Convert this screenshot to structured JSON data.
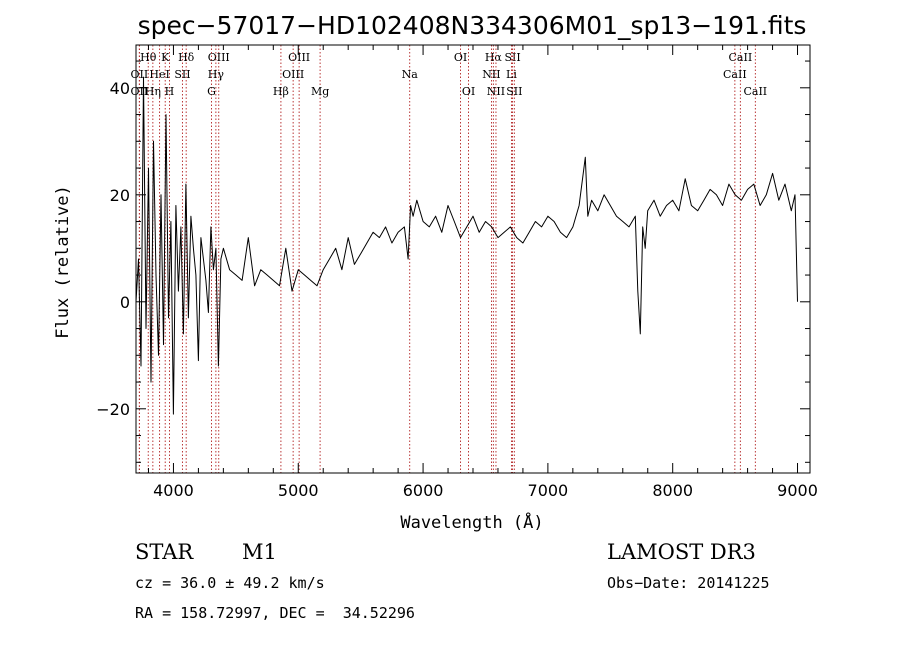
{
  "chart_data": {
    "type": "line",
    "title": "spec−57017−HD102408N334306M01_sp13−191.fits",
    "xlabel": "Wavelength (Å)",
    "ylabel": "Flux (relative)",
    "xlim": [
      3700,
      9100
    ],
    "ylim": [
      -32,
      48
    ],
    "x_ticks": [
      4000,
      5000,
      6000,
      7000,
      8000,
      9000
    ],
    "y_ticks": [
      -20,
      0,
      20,
      40
    ],
    "x_tick_labels": [
      "4000",
      "5000",
      "6000",
      "7000",
      "8000",
      "9000"
    ],
    "y_tick_labels": [
      "−20",
      "0",
      "20",
      "40"
    ],
    "grid": false,
    "legend": "none",
    "line_color": "#000000",
    "marker_color": "#b22222",
    "spectral_lines": [
      {
        "label": "Hθ",
        "x": 3798,
        "row": 0
      },
      {
        "label": "K",
        "x": 3934,
        "row": 0
      },
      {
        "label": "Hδ",
        "x": 4102,
        "row": 0
      },
      {
        "label": "OIII",
        "x": 4363,
        "row": 0
      },
      {
        "label": "OIII",
        "x": 5007,
        "row": 0
      },
      {
        "label": "OI",
        "x": 6300,
        "row": 0
      },
      {
        "label": "Hα",
        "x": 6563,
        "row": 0
      },
      {
        "label": "SII",
        "x": 6717,
        "row": 0
      },
      {
        "label": "CaII",
        "x": 8542,
        "row": 0
      },
      {
        "label": "OII",
        "x": 3727,
        "row": 1
      },
      {
        "label": "HeI",
        "x": 3889,
        "row": 1
      },
      {
        "label": "SII",
        "x": 4072,
        "row": 1
      },
      {
        "label": "Hγ",
        "x": 4340,
        "row": 1
      },
      {
        "label": "OIII",
        "x": 4959,
        "row": 1
      },
      {
        "label": "Na",
        "x": 5893,
        "row": 1
      },
      {
        "label": "NII",
        "x": 6548,
        "row": 1
      },
      {
        "label": "Li",
        "x": 6708,
        "row": 1
      },
      {
        "label": "CaII",
        "x": 8498,
        "row": 1
      },
      {
        "label": "OII",
        "x": 3727,
        "row": 2
      },
      {
        "label": "Hη",
        "x": 3835,
        "row": 2
      },
      {
        "label": "H",
        "x": 3968,
        "row": 2
      },
      {
        "label": "G",
        "x": 4305,
        "row": 2
      },
      {
        "label": "Hβ",
        "x": 4861,
        "row": 2
      },
      {
        "label": "Mg",
        "x": 5175,
        "row": 2
      },
      {
        "label": "OI",
        "x": 6364,
        "row": 2
      },
      {
        "label": "NII",
        "x": 6584,
        "row": 2
      },
      {
        "label": "SII",
        "x": 6731,
        "row": 2
      },
      {
        "label": "CaII",
        "x": 8662,
        "row": 2
      }
    ],
    "series": [
      {
        "x": [
          3700,
          3720,
          3740,
          3760,
          3780,
          3800,
          3820,
          3840,
          3860,
          3880,
          3900,
          3920,
          3940,
          3960,
          3980,
          4000,
          4020,
          4040,
          4060,
          4080,
          4100,
          4120,
          4140,
          4160,
          4180,
          4200,
          4220,
          4240,
          4260,
          4280,
          4300,
          4320,
          4340,
          4360,
          4380,
          4400,
          4450,
          4500,
          4550,
          4600,
          4650,
          4700,
          4750,
          4800,
          4850,
          4900,
          4950,
          5000,
          5050,
          5100,
          5150,
          5200,
          5250,
          5300,
          5350,
          5400,
          5450,
          5500,
          5550,
          5600,
          5650,
          5700,
          5750,
          5800,
          5850,
          5880,
          5900,
          5920,
          5950,
          6000,
          6050,
          6100,
          6150,
          6200,
          6250,
          6300,
          6350,
          6400,
          6450,
          6500,
          6550,
          6600,
          6650,
          6700,
          6750,
          6800,
          6850,
          6900,
          6950,
          7000,
          7050,
          7100,
          7150,
          7200,
          7250,
          7300,
          7320,
          7350,
          7400,
          7450,
          7500,
          7550,
          7600,
          7650,
          7700,
          7720,
          7740,
          7760,
          7780,
          7800,
          7850,
          7900,
          7950,
          8000,
          8050,
          8100,
          8150,
          8200,
          8250,
          8300,
          8350,
          8400,
          8450,
          8500,
          8550,
          8600,
          8650,
          8700,
          8750,
          8800,
          8850,
          8900,
          8950,
          8980,
          9000
        ],
        "y": [
          0,
          8,
          -12,
          42,
          -5,
          25,
          -15,
          30,
          5,
          -10,
          20,
          -8,
          35,
          -3,
          15,
          -21,
          18,
          2,
          14,
          -6,
          22,
          -3,
          16,
          10,
          5,
          -11,
          12,
          8,
          4,
          -2,
          14,
          6,
          10,
          -12,
          8,
          10,
          6,
          5,
          4,
          12,
          3,
          6,
          5,
          4,
          3,
          10,
          2,
          6,
          5,
          4,
          3,
          6,
          8,
          10,
          6,
          12,
          7,
          9,
          11,
          13,
          12,
          14,
          11,
          13,
          14,
          8,
          18,
          16,
          19,
          15,
          14,
          16,
          13,
          18,
          15,
          12,
          14,
          16,
          13,
          15,
          14,
          12,
          13,
          14,
          12,
          11,
          13,
          15,
          14,
          16,
          15,
          13,
          12,
          14,
          18,
          27,
          16,
          19,
          17,
          20,
          18,
          16,
          15,
          14,
          16,
          2,
          -6,
          14,
          10,
          17,
          19,
          16,
          18,
          19,
          17,
          23,
          18,
          17,
          19,
          21,
          20,
          18,
          22,
          20,
          19,
          21,
          22,
          18,
          20,
          24,
          19,
          22,
          17,
          20,
          0
        ]
      }
    ]
  },
  "info": {
    "object_type": "STAR",
    "subclass": "M1",
    "survey": "LAMOST DR3",
    "redshift": "cz = 36.0 ± 49.2 km/s",
    "obs_date": "Obs−Date: 20141225",
    "coords": "RA = 158.72997, DEC =  34.52296"
  }
}
